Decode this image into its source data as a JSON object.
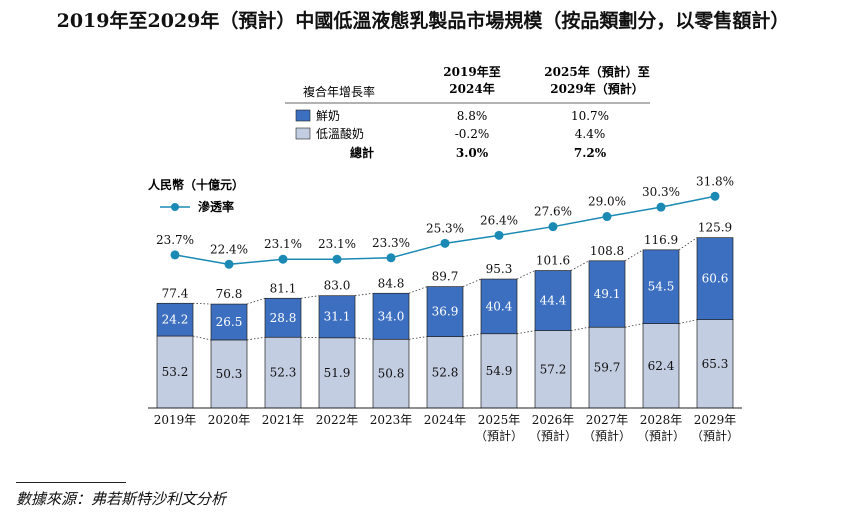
{
  "title": "2019年至2029年（預計）中國低溫液態乳製品市場規模（按品類劃分，以零售額計）",
  "source": "數據來源：弗若斯特沙利文分析",
  "cagr_table": {
    "header_label": "複合年增長率",
    "col1": [
      "2019年至",
      "2024年"
    ],
    "col2": [
      "2025年（預計）至",
      "2029年（預計）"
    ],
    "rows": [
      {
        "label": "鮮奶",
        "color": "#3d6fc0",
        "v1": "8.8%",
        "v2": "10.7%"
      },
      {
        "label": "低溫酸奶",
        "color": "#c3cde2",
        "v1": "-0.2%",
        "v2": "4.4%"
      },
      {
        "label": "總計",
        "v1": "3.0%",
        "v2": "7.2%"
      }
    ]
  },
  "chart_data": {
    "type": "bar",
    "ylabel": "人民幣（十億元）",
    "categories": [
      [
        "2019年"
      ],
      [
        "2020年"
      ],
      [
        "2021年"
      ],
      [
        "2022年"
      ],
      [
        "2023年"
      ],
      [
        "2024年"
      ],
      [
        "2025年",
        "（預計）"
      ],
      [
        "2026年",
        "（預計）"
      ],
      [
        "2027年",
        "（預計）"
      ],
      [
        "2028年",
        "（預計）"
      ],
      [
        "2029年",
        "（預計）"
      ]
    ],
    "series": [
      {
        "name": "低溫酸奶",
        "color": "#c3cde2",
        "values": [
          53.2,
          50.3,
          52.3,
          51.9,
          50.8,
          52.8,
          54.9,
          57.2,
          59.7,
          62.4,
          65.3
        ]
      },
      {
        "name": "鮮奶",
        "color": "#3d6fc0",
        "values": [
          24.2,
          26.5,
          28.8,
          31.1,
          34.0,
          36.9,
          40.4,
          44.4,
          49.1,
          54.5,
          60.6
        ]
      }
    ],
    "totals": [
      77.4,
      76.8,
      81.1,
      83.0,
      84.8,
      89.7,
      95.3,
      101.6,
      108.8,
      116.9,
      125.9
    ],
    "line": {
      "name": "滲透率",
      "color": "#1a8ab5",
      "labels": [
        "23.7%",
        "22.4%",
        "23.1%",
        "23.1%",
        "23.3%",
        "25.3%",
        "26.4%",
        "27.6%",
        "29.0%",
        "30.3%",
        "31.8%"
      ],
      "values": [
        23.7,
        22.4,
        23.1,
        23.1,
        23.3,
        25.3,
        26.4,
        27.6,
        29.0,
        30.3,
        31.8
      ]
    },
    "stacked": true
  }
}
